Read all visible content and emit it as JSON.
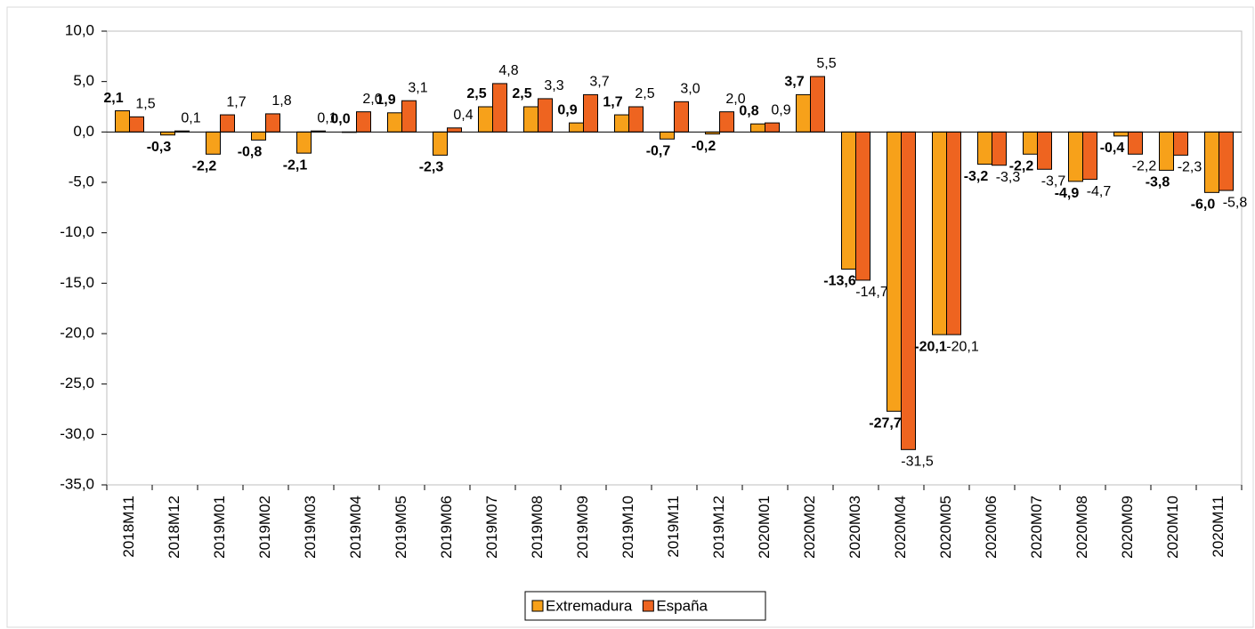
{
  "chart_data": {
    "type": "bar",
    "categories": [
      "2018M11",
      "2018M12",
      "2019M01",
      "2019M02",
      "2019M03",
      "2019M04",
      "2019M05",
      "2019M06",
      "2019M07",
      "2019M08",
      "2019M09",
      "2019M10",
      "2019M11",
      "2019M12",
      "2020M01",
      "2020M02",
      "2020M03",
      "2020M04",
      "2020M05",
      "2020M06",
      "2020M07",
      "2020M08",
      "2020M09",
      "2020M10",
      "2020M11"
    ],
    "series": [
      {
        "name": "Extremadura",
        "color": "#f7a11a",
        "values": [
          2.1,
          -0.3,
          -2.2,
          -0.8,
          -2.1,
          0.0,
          1.9,
          -2.3,
          2.5,
          2.5,
          0.9,
          1.7,
          -0.7,
          -0.2,
          0.8,
          3.7,
          -13.6,
          -27.7,
          -20.1,
          -3.2,
          -2.2,
          -4.9,
          -0.4,
          -3.8,
          -6.0
        ],
        "value_labels": [
          "2,1",
          "-0,3",
          "-2,2",
          "-0,8",
          "-2,1",
          "0,0",
          "1,9",
          "-2,3",
          "2,5",
          "2,5",
          "0,9",
          "1,7",
          "-0,7",
          "-0,2",
          "0,8",
          "3,7",
          "-13,6",
          "-27,7",
          "-20,1",
          "-3,2",
          "-2,2",
          "-4,9",
          "-0,4",
          "-3,8",
          "-6,0"
        ]
      },
      {
        "name": "España",
        "color": "#ee6420",
        "values": [
          1.5,
          0.1,
          1.7,
          1.8,
          0.1,
          2.0,
          3.1,
          0.4,
          4.8,
          3.3,
          3.7,
          2.5,
          3.0,
          2.0,
          0.9,
          5.5,
          -14.7,
          -31.5,
          -20.1,
          -3.3,
          -3.7,
          -4.7,
          -2.2,
          -2.3,
          -5.8
        ],
        "value_labels": [
          "1,5",
          "0,1",
          "1,7",
          "1,8",
          "0,1",
          "2,0",
          "3,1",
          "0,4",
          "4,8",
          "3,3",
          "3,7",
          "2,5",
          "3,0",
          "2,0",
          "0,9",
          "5,5",
          "-14,7",
          "-31,5",
          "-20,1",
          "-3,3",
          "-3,7",
          "-4,7",
          "-2,2",
          "-2,3",
          "-5,8"
        ]
      }
    ],
    "ylim": [
      -35,
      10
    ],
    "yticks": [
      {
        "value": -35,
        "label": "-35,0"
      },
      {
        "value": -30,
        "label": "-30,0"
      },
      {
        "value": -25,
        "label": "-25,0"
      },
      {
        "value": -20,
        "label": "-20,0"
      },
      {
        "value": -15,
        "label": "-15,0"
      },
      {
        "value": -10,
        "label": "-10,0"
      },
      {
        "value": -5,
        "label": "-5,0"
      },
      {
        "value": 0,
        "label": "0,0"
      },
      {
        "value": 5,
        "label": "5,0"
      },
      {
        "value": 10,
        "label": "10,0"
      }
    ],
    "grid": false,
    "legend": "bottom"
  }
}
